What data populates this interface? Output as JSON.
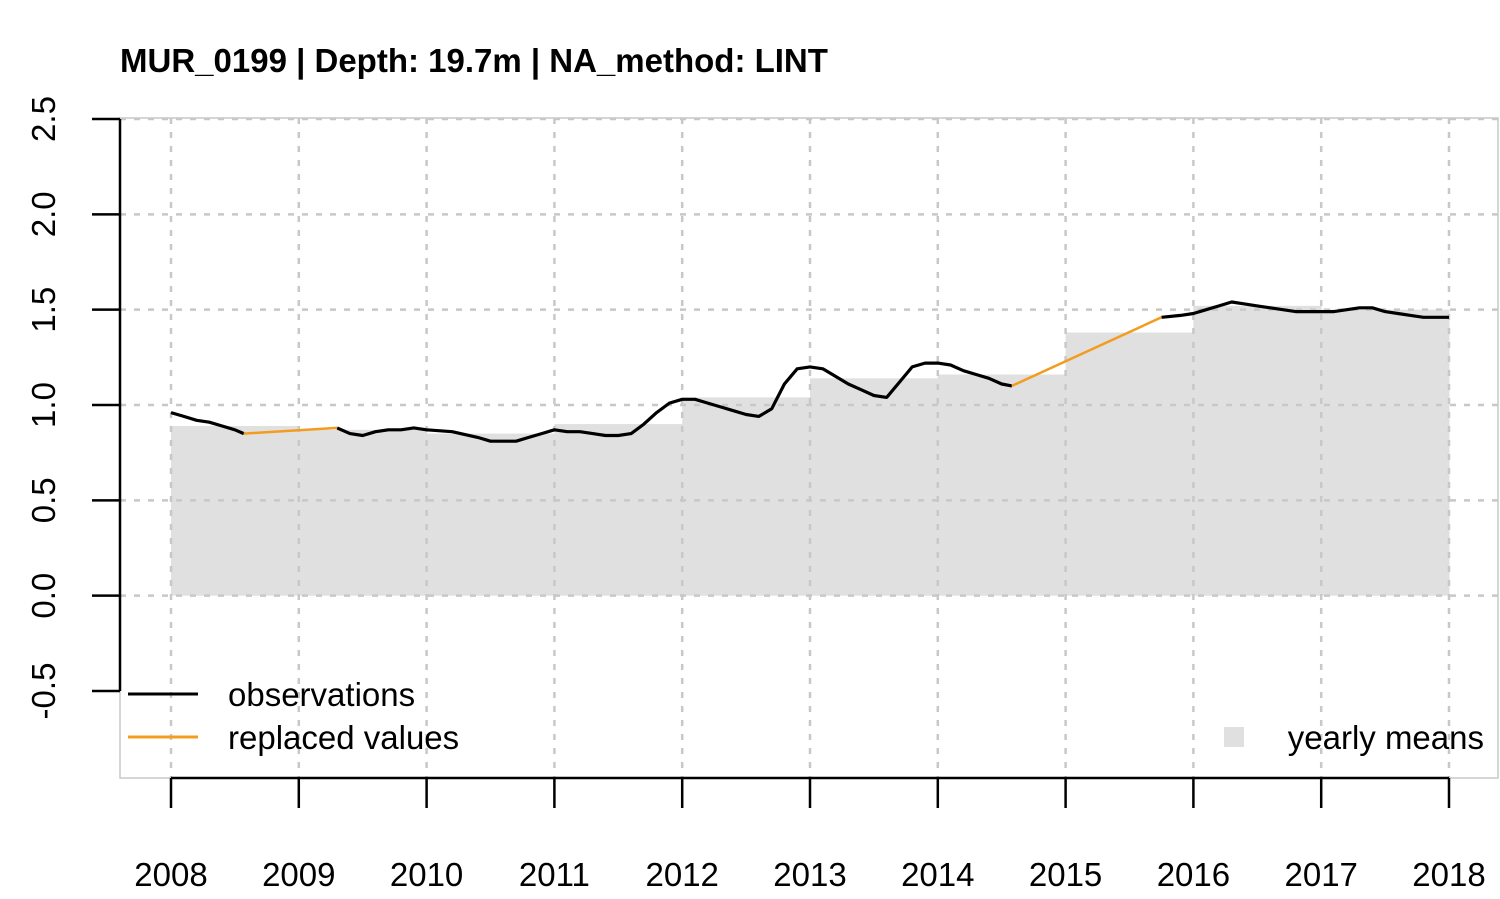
{
  "chart_data": {
    "type": "line",
    "title": "MUR_0199 | Depth: 19.7m | NA_method: LINT",
    "xlabel": "",
    "ylabel": "",
    "xlim": [
      2008,
      2018
    ],
    "ylim": [
      -0.5,
      2.5
    ],
    "x_ticks": [
      "2008",
      "2009",
      "2010",
      "2011",
      "2012",
      "2013",
      "2014",
      "2015",
      "2016",
      "2017",
      "2018"
    ],
    "y_ticks": [
      "-0.5",
      "0.0",
      "0.5",
      "1.0",
      "1.5",
      "2.0",
      "2.5"
    ],
    "grid": true,
    "legend": [
      {
        "label": "observations",
        "color": "#000000",
        "kind": "line",
        "position": "bottom-left"
      },
      {
        "label": "replaced values",
        "color": "#f39c1f",
        "kind": "line",
        "position": "bottom-left"
      },
      {
        "label": "yearly means",
        "color": "#e0e0e0",
        "kind": "fill",
        "position": "bottom-right"
      }
    ],
    "yearly_means": [
      {
        "year": 2008,
        "value": 0.89
      },
      {
        "year": 2009,
        "value": 0.87
      },
      {
        "year": 2010,
        "value": 0.85
      },
      {
        "year": 2011,
        "value": 0.9
      },
      {
        "year": 2012,
        "value": 1.04
      },
      {
        "year": 2013,
        "value": 1.14
      },
      {
        "year": 2014,
        "value": 1.16
      },
      {
        "year": 2015,
        "value": 1.38
      },
      {
        "year": 2016,
        "value": 1.52
      },
      {
        "year": 2017,
        "value": 1.5
      }
    ],
    "series": [
      {
        "name": "observations",
        "color": "#000000",
        "segments": [
          [
            [
              2008.0,
              0.96
            ],
            [
              2008.1,
              0.94
            ],
            [
              2008.2,
              0.92
            ],
            [
              2008.3,
              0.91
            ],
            [
              2008.4,
              0.89
            ],
            [
              2008.5,
              0.87
            ],
            [
              2008.57,
              0.85
            ]
          ],
          [
            [
              2009.3,
              0.88
            ],
            [
              2009.4,
              0.85
            ],
            [
              2009.5,
              0.84
            ],
            [
              2009.6,
              0.86
            ],
            [
              2009.7,
              0.87
            ],
            [
              2009.8,
              0.87
            ],
            [
              2009.9,
              0.88
            ],
            [
              2010.0,
              0.87
            ],
            [
              2010.2,
              0.86
            ],
            [
              2010.4,
              0.83
            ],
            [
              2010.5,
              0.81
            ],
            [
              2010.6,
              0.81
            ],
            [
              2010.7,
              0.81
            ],
            [
              2010.8,
              0.83
            ],
            [
              2010.9,
              0.85
            ],
            [
              2011.0,
              0.87
            ],
            [
              2011.1,
              0.86
            ],
            [
              2011.2,
              0.86
            ],
            [
              2011.3,
              0.85
            ],
            [
              2011.4,
              0.84
            ],
            [
              2011.5,
              0.84
            ],
            [
              2011.6,
              0.85
            ],
            [
              2011.7,
              0.9
            ],
            [
              2011.8,
              0.96
            ],
            [
              2011.9,
              1.01
            ],
            [
              2012.0,
              1.03
            ],
            [
              2012.1,
              1.03
            ],
            [
              2012.2,
              1.01
            ],
            [
              2012.3,
              0.99
            ],
            [
              2012.4,
              0.97
            ],
            [
              2012.5,
              0.95
            ],
            [
              2012.6,
              0.94
            ],
            [
              2012.7,
              0.98
            ],
            [
              2012.8,
              1.11
            ],
            [
              2012.9,
              1.19
            ],
            [
              2013.0,
              1.2
            ],
            [
              2013.1,
              1.19
            ],
            [
              2013.2,
              1.15
            ],
            [
              2013.3,
              1.11
            ],
            [
              2013.4,
              1.08
            ],
            [
              2013.5,
              1.05
            ],
            [
              2013.6,
              1.04
            ],
            [
              2013.7,
              1.12
            ],
            [
              2013.8,
              1.2
            ],
            [
              2013.9,
              1.22
            ],
            [
              2014.0,
              1.22
            ],
            [
              2014.1,
              1.21
            ],
            [
              2014.2,
              1.18
            ],
            [
              2014.3,
              1.16
            ],
            [
              2014.4,
              1.14
            ],
            [
              2014.5,
              1.11
            ],
            [
              2014.58,
              1.1
            ]
          ],
          [
            [
              2015.75,
              1.46
            ],
            [
              2015.9,
              1.47
            ],
            [
              2016.0,
              1.48
            ],
            [
              2016.1,
              1.5
            ],
            [
              2016.2,
              1.52
            ],
            [
              2016.3,
              1.54
            ],
            [
              2016.4,
              1.53
            ],
            [
              2016.5,
              1.52
            ],
            [
              2016.6,
              1.51
            ],
            [
              2016.7,
              1.5
            ],
            [
              2016.8,
              1.49
            ],
            [
              2016.9,
              1.49
            ],
            [
              2017.0,
              1.49
            ],
            [
              2017.1,
              1.49
            ],
            [
              2017.2,
              1.5
            ],
            [
              2017.3,
              1.51
            ],
            [
              2017.4,
              1.51
            ],
            [
              2017.5,
              1.49
            ],
            [
              2017.6,
              1.48
            ],
            [
              2017.7,
              1.47
            ],
            [
              2017.8,
              1.46
            ],
            [
              2017.9,
              1.46
            ],
            [
              2018.0,
              1.46
            ]
          ]
        ]
      },
      {
        "name": "replaced values",
        "color": "#f39c1f",
        "segments": [
          [
            [
              2008.57,
              0.85
            ],
            [
              2009.3,
              0.88
            ]
          ],
          [
            [
              2014.58,
              1.1
            ],
            [
              2015.75,
              1.46
            ]
          ]
        ]
      }
    ]
  }
}
